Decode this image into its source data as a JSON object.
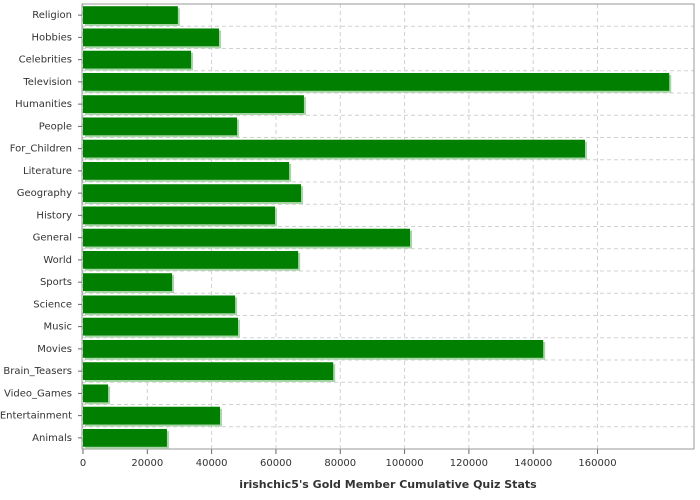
{
  "chart_data": {
    "type": "bar",
    "orientation": "horizontal",
    "x_label": "irishchic5's Gold Member Cumulative Quiz Stats",
    "categories": [
      "Religion",
      "Hobbies",
      "Celebrities",
      "Television",
      "Humanities",
      "People",
      "For_Children",
      "Literature",
      "Geography",
      "History",
      "General",
      "World",
      "Sports",
      "Science",
      "Music",
      "Movies",
      "Brain_Teasers",
      "Video_Games",
      "Entertainment",
      "Animals"
    ],
    "values": [
      29500,
      42300,
      33600,
      182300,
      68700,
      47900,
      156100,
      64100,
      67800,
      59700,
      101700,
      66900,
      27700,
      47300,
      48200,
      143100,
      77800,
      7800,
      42600,
      26100
    ],
    "color": "#007f00",
    "xlim": [
      0,
      190000
    ],
    "xticks": [
      0,
      20000,
      40000,
      60000,
      80000,
      100000,
      120000,
      140000,
      160000
    ],
    "grid": true
  }
}
